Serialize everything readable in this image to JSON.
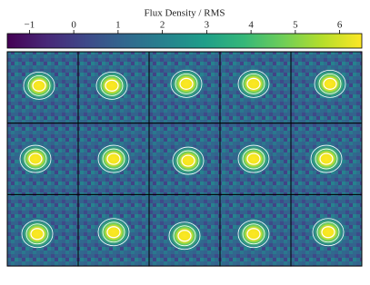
{
  "chart_data": {
    "type": "image_grid",
    "colormap": "viridis",
    "colorbar": {
      "label": "Flux Density / RMS",
      "lim": [
        -1.5,
        6.5
      ],
      "ticks": [
        {
          "value": -1,
          "label": "−1"
        },
        0,
        1,
        2,
        3,
        4,
        5,
        6
      ]
    }
  }
}
